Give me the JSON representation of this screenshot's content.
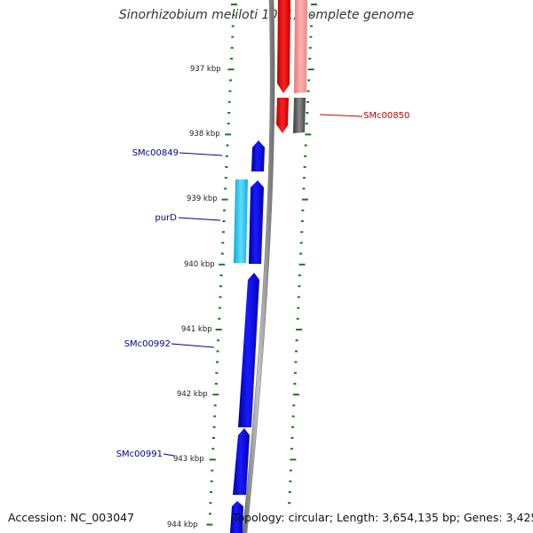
{
  "title": "Sinorhizobium meliloti 1021, complete genome",
  "accession": "Accession: NC_003047",
  "topology": "Topology: circular; Length: 3,654,135 bp; Genes: 3,425",
  "colors": {
    "forward_gene": "#0000e6",
    "forward_gene_alt": "#22c4f0",
    "reverse_gene": "#e60000",
    "reverse_gene_light": "#f49090",
    "reverse_gene_dark": "#555555",
    "backbone": "#8a8a8a",
    "tick": "#1a7a1a",
    "label_blue": "#00008b",
    "label_red": "#cc0000"
  },
  "axis": {
    "unit": "kbp",
    "ticks": [
      {
        "kbp": 937,
        "label": "937 kbp"
      },
      {
        "kbp": 938,
        "label": "938 kbp"
      },
      {
        "kbp": 939,
        "label": "939 kbp"
      },
      {
        "kbp": 940,
        "label": "940 kbp"
      },
      {
        "kbp": 941,
        "label": "941 kbp"
      },
      {
        "kbp": 942,
        "label": "942 kbp"
      },
      {
        "kbp": 943,
        "label": "943 kbp"
      },
      {
        "kbp": 944,
        "label": "944 kbp"
      }
    ]
  },
  "genes": [
    {
      "name": "SMc00850",
      "strand": "reverse",
      "start_kbp": 938.49,
      "end_kbp": 939.97,
      "color": "#555555"
    },
    {
      "name": "SMc00849",
      "strand": "forward",
      "start_kbp": 938.11,
      "end_kbp": 938.58,
      "color": "#0000e6"
    },
    {
      "name": "purD",
      "strand": "forward",
      "start_kbp": 939.66,
      "end_kbp": 940.0,
      "color": "#22c4f0"
    },
    {
      "name": "SMc00992",
      "strand": "forward",
      "start_kbp": 940.17,
      "end_kbp": 942.87,
      "color": "#0000e6"
    },
    {
      "name": "SMc00991",
      "strand": "forward",
      "start_kbp": 942.9,
      "end_kbp": 943.56,
      "color": "#0000e6"
    }
  ],
  "labels": [
    {
      "text": "SMc00850",
      "side": "right",
      "color": "#cc0000"
    },
    {
      "text": "SMc00849",
      "side": "left",
      "color": "#00008b"
    },
    {
      "text": "purD",
      "side": "left",
      "color": "#00008b"
    },
    {
      "text": "SMc00992",
      "side": "left",
      "color": "#00008b"
    },
    {
      "text": "SMc00991",
      "side": "left",
      "color": "#00008b"
    }
  ]
}
